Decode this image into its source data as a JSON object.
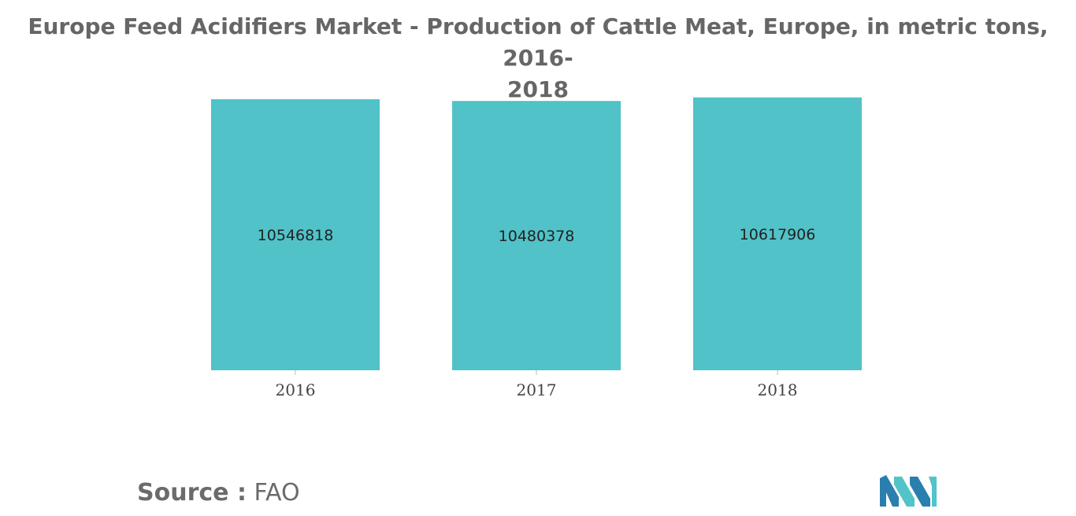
{
  "title_line_1": "Europe Feed Acidifiers Market - Production of Cattle Meat, Europe, in metric tons, 2016-",
  "title_line_2": "2018",
  "source": {
    "label": "Source :",
    "value": "FAO"
  },
  "logo": {
    "colors": [
      "#2a7fae",
      "#52c3c8"
    ]
  },
  "bar_color": "#50c2c8",
  "chart_data": {
    "type": "bar",
    "title": "Europe Feed Acidifiers Market - Production of Cattle Meat, Europe, in metric tons, 2016-2018",
    "categories": [
      "2016",
      "2017",
      "2018"
    ],
    "values": [
      10546818,
      10480378,
      10617906
    ],
    "data_labels": [
      "10546818",
      "10480378",
      "10617906"
    ],
    "xlabel": "",
    "ylabel": "",
    "grid": false,
    "legend": "none"
  }
}
